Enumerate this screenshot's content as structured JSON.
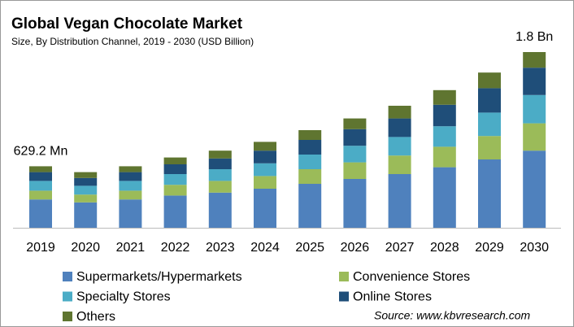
{
  "chart_data": {
    "type": "stacked-bar",
    "title": "Global Vegan Chocolate Market",
    "subtitle": "Size, By Distribution Channel, 2019 - 2030  (USD Billion)",
    "categories": [
      "2019",
      "2020",
      "2021",
      "2022",
      "2023",
      "2024",
      "2025",
      "2026",
      "2027",
      "2028",
      "2029",
      "2030"
    ],
    "series": [
      {
        "name": "Supermarkets/Hypermarkets",
        "color": "#4f81bd",
        "values": [
          0.29,
          0.26,
          0.29,
          0.33,
          0.36,
          0.4,
          0.45,
          0.5,
          0.55,
          0.62,
          0.7,
          0.79
        ]
      },
      {
        "name": "Convenience Stores",
        "color": "#9bbb59",
        "values": [
          0.09,
          0.08,
          0.09,
          0.11,
          0.12,
          0.13,
          0.15,
          0.17,
          0.19,
          0.21,
          0.24,
          0.28
        ]
      },
      {
        "name": "Specialty Stores",
        "color": "#4bacc6",
        "values": [
          0.1,
          0.09,
          0.1,
          0.11,
          0.12,
          0.13,
          0.15,
          0.17,
          0.19,
          0.21,
          0.24,
          0.29
        ]
      },
      {
        "name": "Online Stores",
        "color": "#1f4e79",
        "values": [
          0.09,
          0.08,
          0.09,
          0.1,
          0.11,
          0.13,
          0.15,
          0.17,
          0.19,
          0.22,
          0.25,
          0.28
        ]
      },
      {
        "name": "Others",
        "color": "#5f7530",
        "values": [
          0.06,
          0.06,
          0.06,
          0.07,
          0.08,
          0.09,
          0.1,
          0.11,
          0.13,
          0.15,
          0.16,
          0.16
        ]
      }
    ],
    "annotations": [
      {
        "category": "2019",
        "label": "629.2 Mn",
        "value": 0.6292
      },
      {
        "category": "2030",
        "label": "1.8 Bn",
        "value": 1.8
      }
    ],
    "ylim": [
      0,
      1.85
    ],
    "source": "Source: www.kbvresearch.com"
  }
}
